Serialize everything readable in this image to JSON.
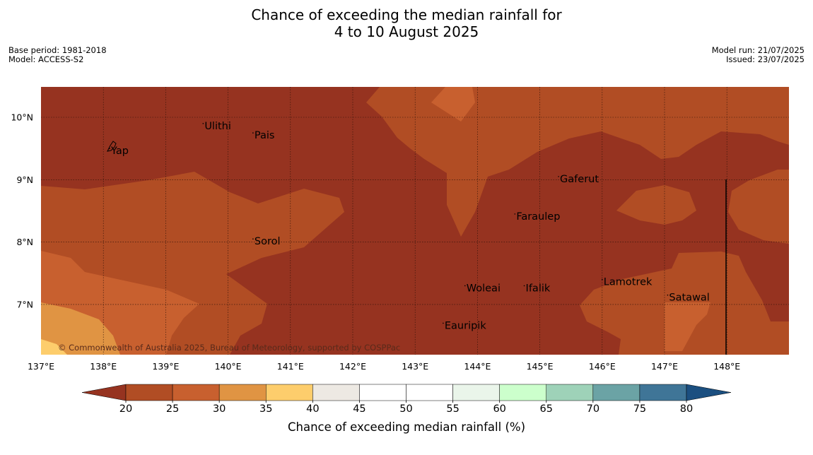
{
  "title": {
    "line1": "Chance of exceeding the median rainfall for",
    "line2": "4 to 10 August 2025"
  },
  "info_left": {
    "base_period": "Base period: 1981-2018",
    "model": "Model: ACCESS-S2"
  },
  "info_right": {
    "model_run": "Model run: 21/07/2025",
    "issued": "Issued: 23/07/2025"
  },
  "map": {
    "lon_range": [
      137,
      149
    ],
    "lat_range": [
      6.2,
      10.5
    ],
    "lon_ticks": [
      "137°E",
      "138°E",
      "139°E",
      "140°E",
      "141°E",
      "142°E",
      "143°E",
      "144°E",
      "145°E",
      "146°E",
      "147°E",
      "148°E"
    ],
    "lat_ticks": [
      "10°N",
      "9°N",
      "8°N",
      "7°N"
    ],
    "copyright": "© Commonwealth of Australia 2025, Bureau of Meteorology, supported by COSPPac",
    "places": [
      {
        "name": "Yap",
        "lon": 138.1,
        "lat": 9.5
      },
      {
        "name": "Ulithi",
        "lon": 139.6,
        "lat": 9.9
      },
      {
        "name": "Pais",
        "lon": 140.4,
        "lat": 9.75
      },
      {
        "name": "Gaferut",
        "lon": 145.3,
        "lat": 9.05
      },
      {
        "name": "Faraulep",
        "lon": 144.6,
        "lat": 8.45
      },
      {
        "name": "Sorol",
        "lon": 140.4,
        "lat": 8.05
      },
      {
        "name": "Lamotrek",
        "lon": 146.0,
        "lat": 7.4
      },
      {
        "name": "Woleai",
        "lon": 143.8,
        "lat": 7.3
      },
      {
        "name": "Ifalik",
        "lon": 144.75,
        "lat": 7.3
      },
      {
        "name": "Satawal",
        "lon": 147.05,
        "lat": 7.15
      },
      {
        "name": "Eauripik",
        "lon": 143.45,
        "lat": 6.7
      }
    ],
    "colors": {
      "base": "#963320",
      "c20": "#b14d24",
      "c25": "#c8602f",
      "c30": "#e09443",
      "c35": "#fdcd6c"
    }
  },
  "colorbar": {
    "label": "Chance of exceeding median rainfall (%)",
    "ticks": [
      "20",
      "25",
      "30",
      "35",
      "40",
      "45",
      "50",
      "55",
      "60",
      "65",
      "70",
      "75",
      "80"
    ],
    "low_extend_color": "#963320",
    "high_extend_color": "#1b4f80",
    "colors": [
      "#b14d24",
      "#c8602f",
      "#e09443",
      "#fdcd6c",
      "#ede9e3",
      "#ffffff",
      "#ffffff",
      "#eaf5ea",
      "#ccffcc",
      "#9ed2b8",
      "#6ba3a5",
      "#3f7597"
    ]
  }
}
